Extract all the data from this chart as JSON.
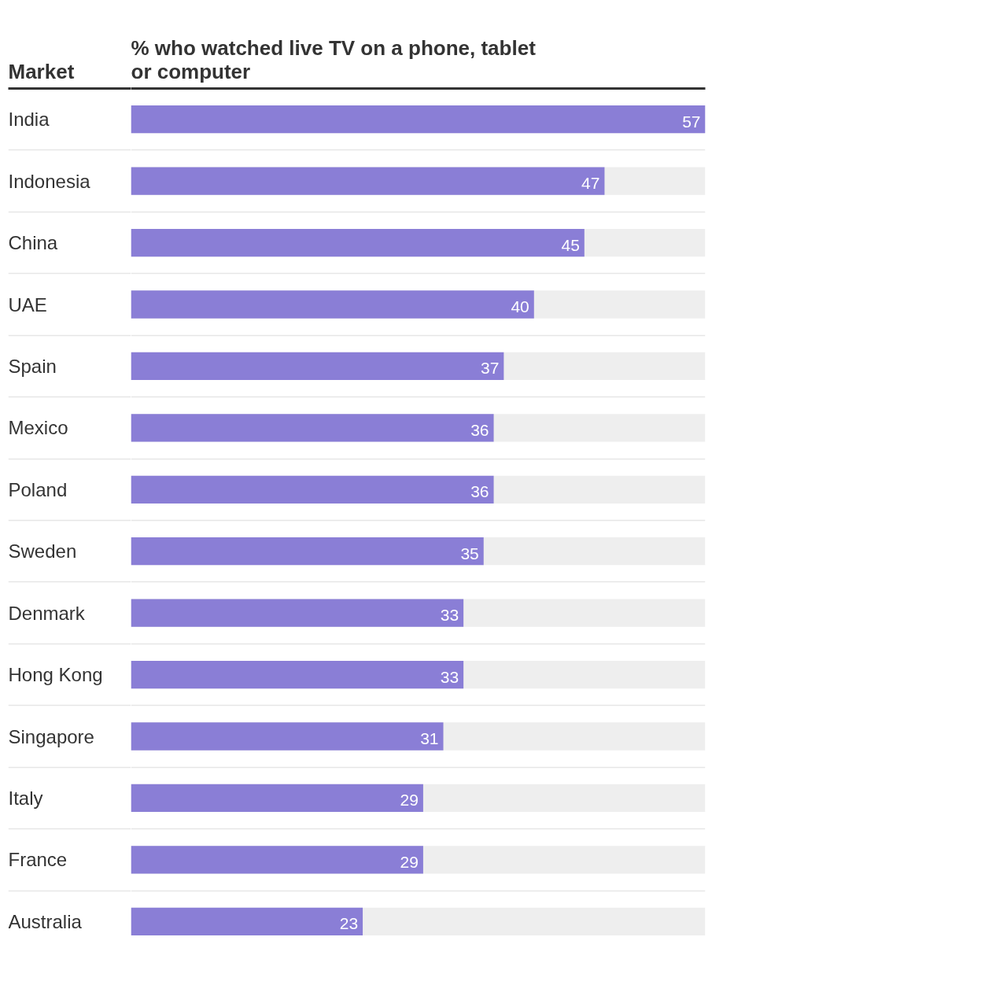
{
  "chart_data": {
    "type": "bar",
    "orientation": "horizontal",
    "title": "% who watched live TV on a phone, tablet or computer",
    "ylabel": "Market",
    "categories": [
      "India",
      "Indonesia",
      "China",
      "UAE",
      "Spain",
      "Mexico",
      "Poland",
      "Sweden",
      "Denmark",
      "Hong Kong",
      "Singapore",
      "Italy",
      "France",
      "Australia"
    ],
    "values": [
      57,
      47,
      45,
      40,
      37,
      36,
      36,
      35,
      33,
      33,
      31,
      29,
      29,
      23
    ],
    "color": "#8a7ed6",
    "xlim": [
      0,
      57
    ],
    "data_labels": true,
    "tick_labels": "y",
    "grid": "y"
  }
}
